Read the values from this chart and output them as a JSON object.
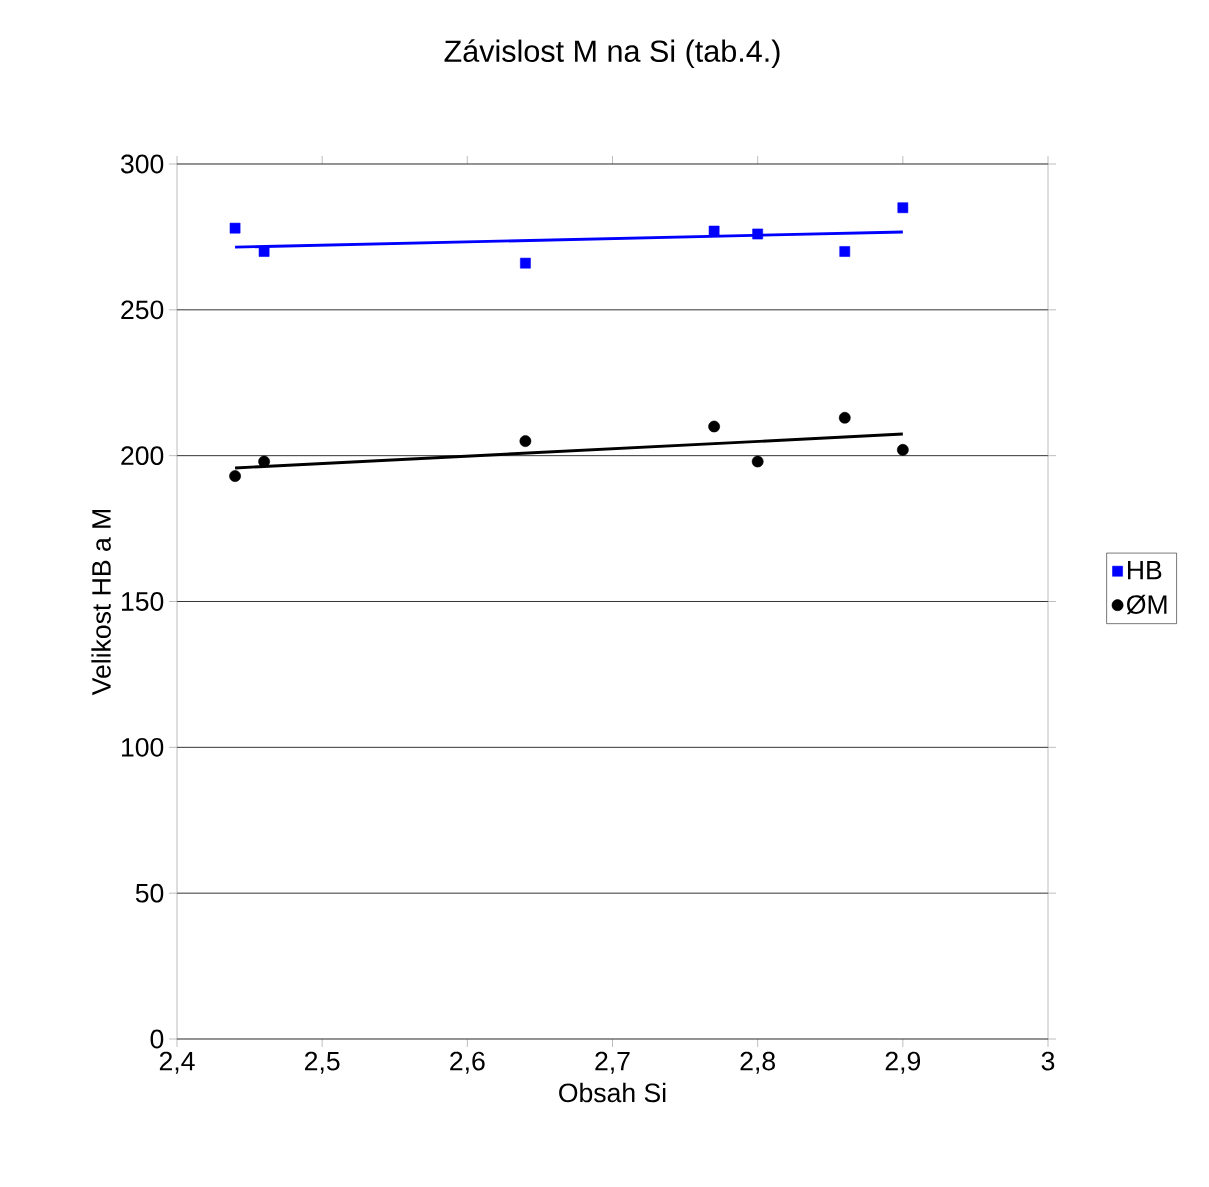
{
  "chart_data": {
    "type": "scatter",
    "title": "Závislost M na Si (tab.4.)",
    "xlabel": "Obsah Si",
    "ylabel": "Velikost HB a M",
    "xlim": [
      2.4,
      3
    ],
    "ylim": [
      0,
      300
    ],
    "xticks": [
      {
        "value": 2.4,
        "label": "2,4"
      },
      {
        "value": 2.5,
        "label": "2,5"
      },
      {
        "value": 2.6,
        "label": "2,6"
      },
      {
        "value": 2.7,
        "label": "2,7"
      },
      {
        "value": 2.8,
        "label": "2,8"
      },
      {
        "value": 2.9,
        "label": "2,9"
      },
      {
        "value": 3,
        "label": "3"
      }
    ],
    "yticks": [
      0,
      50,
      100,
      150,
      200,
      250,
      300
    ],
    "grid": "y",
    "legend": "right",
    "series": [
      {
        "name": "HB",
        "color": "#0000ff",
        "marker": "square",
        "x": [
          2.44,
          2.46,
          2.64,
          2.77,
          2.8,
          2.86,
          2.9
        ],
        "values": [
          278,
          270,
          266,
          277,
          276,
          270,
          285
        ]
      },
      {
        "name": "ØM",
        "color": "#000000",
        "marker": "circle",
        "x": [
          2.44,
          2.46,
          2.64,
          2.77,
          2.8,
          2.86,
          2.9
        ],
        "values": [
          193,
          198,
          205,
          210,
          198,
          213,
          202
        ]
      },
      {
        "type": "line",
        "color": "#0000ff",
        "marker": "none",
        "x": [
          2.44,
          2.9
        ],
        "values": [
          271.5,
          276.7
        ]
      },
      {
        "type": "line",
        "color": "#000000",
        "marker": "none",
        "x": [
          2.44,
          2.9
        ],
        "values": [
          195.8,
          207.4
        ]
      }
    ]
  }
}
